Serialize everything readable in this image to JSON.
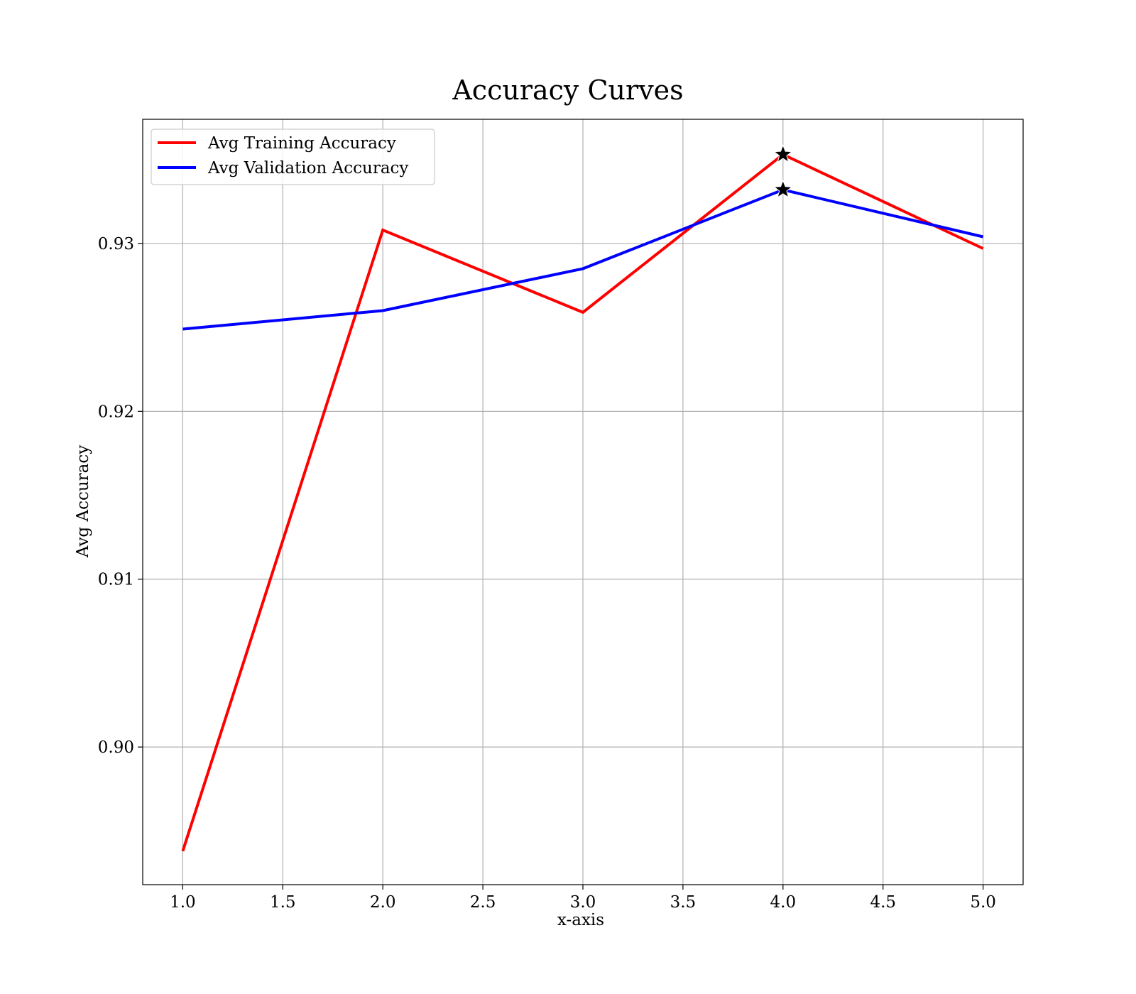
{
  "chart_data": {
    "type": "line",
    "title": "Accuracy Curves",
    "xlabel": "x-axis",
    "ylabel": "Avg Accuracy",
    "xlim": [
      0.8,
      5.2
    ],
    "ylim": [
      0.8918,
      0.9374
    ],
    "x_ticks": [
      1.0,
      1.5,
      2.0,
      2.5,
      3.0,
      3.5,
      4.0,
      4.5,
      5.0
    ],
    "x_tick_labels": [
      "1.0",
      "1.5",
      "2.0",
      "2.5",
      "3.0",
      "3.5",
      "4.0",
      "4.5",
      "5.0"
    ],
    "y_ticks": [
      0.9,
      0.91,
      0.92,
      0.93
    ],
    "y_tick_labels": [
      "0.90",
      "0.91",
      "0.92",
      "0.93"
    ],
    "grid": true,
    "legend_position": "top-left",
    "x": [
      1,
      2,
      3,
      4,
      5
    ],
    "series": [
      {
        "name": "Avg Training Accuracy",
        "color": "#ff0000",
        "values": [
          0.8938,
          0.9308,
          0.9259,
          0.9353,
          0.9297
        ]
      },
      {
        "name": "Avg Validation Accuracy",
        "color": "#0000ff",
        "values": [
          0.9249,
          0.926,
          0.9285,
          0.9332,
          0.9304
        ]
      }
    ],
    "markers": [
      {
        "series": 0,
        "x": 4,
        "y": 0.9353,
        "shape": "star-icon"
      },
      {
        "series": 1,
        "x": 4,
        "y": 0.9332,
        "shape": "star-icon"
      }
    ]
  }
}
